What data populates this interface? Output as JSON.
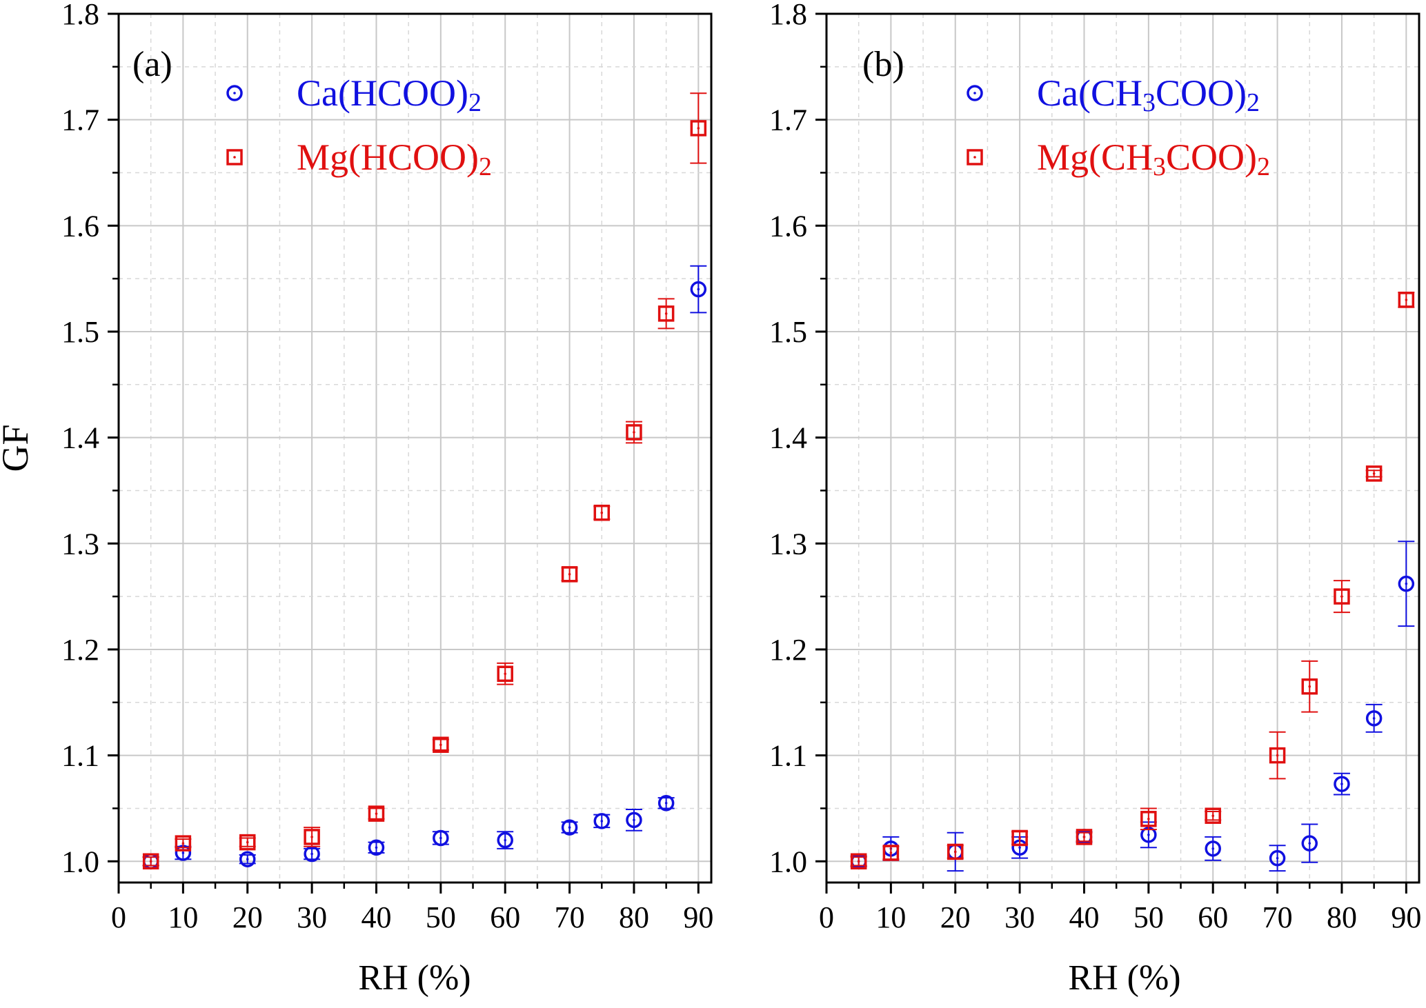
{
  "figure": {
    "ylabel": "GF",
    "xlabel": "RH (%)"
  },
  "chart_data": [
    {
      "type": "scatter",
      "panel_label": "(a)",
      "xlabel": "RH (%)",
      "ylabel": "GF",
      "xlim": [
        0,
        92
      ],
      "ylim": [
        0.98,
        1.8
      ],
      "xticks": [
        0,
        10,
        20,
        30,
        40,
        50,
        60,
        70,
        80,
        90
      ],
      "yticks": [
        1.0,
        1.1,
        1.2,
        1.3,
        1.4,
        1.5,
        1.6,
        1.7,
        1.8
      ],
      "grid": true,
      "legend_position": "top-right",
      "series": [
        {
          "name": "Ca(HCOO)",
          "subscript": "2",
          "marker": "circle",
          "color": "#1010e0",
          "points": [
            {
              "x": 5,
              "y": 1.0,
              "err": 0.004
            },
            {
              "x": 10,
              "y": 1.008,
              "err": 0.006
            },
            {
              "x": 20,
              "y": 1.002,
              "err": 0.004
            },
            {
              "x": 30,
              "y": 1.007,
              "err": 0.005
            },
            {
              "x": 40,
              "y": 1.013,
              "err": 0.005
            },
            {
              "x": 50,
              "y": 1.022,
              "err": 0.006
            },
            {
              "x": 60,
              "y": 1.02,
              "err": 0.008
            },
            {
              "x": 70,
              "y": 1.032,
              "err": 0.005
            },
            {
              "x": 75,
              "y": 1.038,
              "err": 0.006
            },
            {
              "x": 80,
              "y": 1.039,
              "err": 0.01
            },
            {
              "x": 85,
              "y": 1.055,
              "err": 0.005
            },
            {
              "x": 90,
              "y": 1.54,
              "err": 0.022
            }
          ]
        },
        {
          "name": "Mg(HCOO)",
          "subscript": "2",
          "marker": "square",
          "color": "#e01010",
          "points": [
            {
              "x": 5,
              "y": 1.0,
              "err": 0.004
            },
            {
              "x": 10,
              "y": 1.017,
              "err": 0.004
            },
            {
              "x": 20,
              "y": 1.018,
              "err": 0.004
            },
            {
              "x": 30,
              "y": 1.023,
              "err": 0.009
            },
            {
              "x": 40,
              "y": 1.045,
              "err": 0.005
            },
            {
              "x": 50,
              "y": 1.11,
              "err": 0.005
            },
            {
              "x": 60,
              "y": 1.177,
              "err": 0.01
            },
            {
              "x": 70,
              "y": 1.271,
              "err": 0.006
            },
            {
              "x": 75,
              "y": 1.329,
              "err": 0.006
            },
            {
              "x": 80,
              "y": 1.405,
              "err": 0.01
            },
            {
              "x": 85,
              "y": 1.517,
              "err": 0.014
            },
            {
              "x": 90,
              "y": 1.692,
              "err": 0.033
            }
          ]
        }
      ]
    },
    {
      "type": "scatter",
      "panel_label": "(b)",
      "xlabel": "RH (%)",
      "ylabel": "",
      "xlim": [
        0,
        92
      ],
      "ylim": [
        0.98,
        1.8
      ],
      "xticks": [
        0,
        10,
        20,
        30,
        40,
        50,
        60,
        70,
        80,
        90
      ],
      "yticks": [
        1.0,
        1.1,
        1.2,
        1.3,
        1.4,
        1.5,
        1.6,
        1.7,
        1.8
      ],
      "grid": true,
      "legend_position": "top-right",
      "series": [
        {
          "name": "Ca(CH3COO)2",
          "name_parts": [
            "Ca(CH",
            "3",
            "COO)",
            "2"
          ],
          "marker": "circle",
          "color": "#1010e0",
          "points": [
            {
              "x": 5,
              "y": 1.0,
              "err": 0.005
            },
            {
              "x": 10,
              "y": 1.012,
              "err": 0.011
            },
            {
              "x": 20,
              "y": 1.009,
              "err": 0.018
            },
            {
              "x": 30,
              "y": 1.013,
              "err": 0.01
            },
            {
              "x": 40,
              "y": 1.023,
              "err": 0.005
            },
            {
              "x": 50,
              "y": 1.025,
              "err": 0.012
            },
            {
              "x": 60,
              "y": 1.012,
              "err": 0.011
            },
            {
              "x": 70,
              "y": 1.003,
              "err": 0.012
            },
            {
              "x": 75,
              "y": 1.017,
              "err": 0.018
            },
            {
              "x": 80,
              "y": 1.073,
              "err": 0.01
            },
            {
              "x": 85,
              "y": 1.135,
              "err": 0.013
            },
            {
              "x": 90,
              "y": 1.262,
              "err": 0.04
            }
          ]
        },
        {
          "name": "Mg(CH3COO)2",
          "name_parts": [
            "Mg(CH",
            "3",
            "COO)",
            "2"
          ],
          "marker": "square",
          "color": "#e01010",
          "points": [
            {
              "x": 5,
              "y": 1.0,
              "err": 0.004
            },
            {
              "x": 10,
              "y": 1.008,
              "err": 0.006
            },
            {
              "x": 20,
              "y": 1.009,
              "err": 0.006
            },
            {
              "x": 30,
              "y": 1.022,
              "err": 0.006
            },
            {
              "x": 40,
              "y": 1.023,
              "err": 0.004
            },
            {
              "x": 50,
              "y": 1.04,
              "err": 0.01
            },
            {
              "x": 60,
              "y": 1.043,
              "err": 0.004
            },
            {
              "x": 70,
              "y": 1.1,
              "err": 0.022
            },
            {
              "x": 75,
              "y": 1.165,
              "err": 0.024
            },
            {
              "x": 80,
              "y": 1.25,
              "err": 0.015
            },
            {
              "x": 85,
              "y": 1.366,
              "err": 0.003
            },
            {
              "x": 90,
              "y": 1.53,
              "err": 0.007
            }
          ]
        }
      ]
    }
  ]
}
